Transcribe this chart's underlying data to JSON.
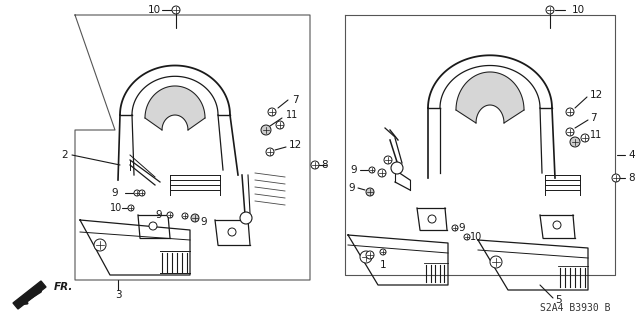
{
  "bg_color": "#ffffff",
  "line_color": "#1a1a1a",
  "fig_code": "S2A4 B3930 B",
  "gray": "#aaaaaa",
  "light_gray": "#cccccc",
  "box_line": "#555555"
}
